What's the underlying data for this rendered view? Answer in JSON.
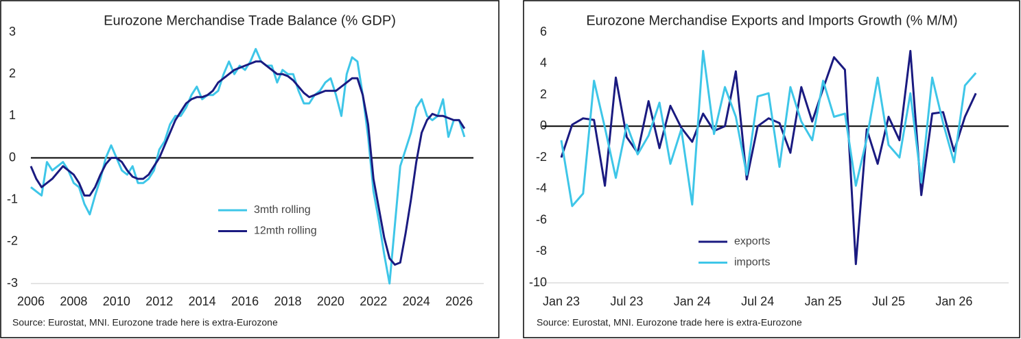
{
  "chart_data": [
    {
      "type": "line",
      "title": "Eurozone Merchandise Trade Balance (% GDP)",
      "source": "Source: Eurostat, MNI.  Eurozone trade here is extra-Eurozone",
      "x": [
        2006.0,
        2006.25,
        2006.5,
        2006.75,
        2007.0,
        2007.25,
        2007.5,
        2007.75,
        2008.0,
        2008.25,
        2008.5,
        2008.75,
        2009.0,
        2009.25,
        2009.5,
        2009.75,
        2010.0,
        2010.25,
        2010.5,
        2010.75,
        2011.0,
        2011.25,
        2011.5,
        2011.75,
        2012.0,
        2012.25,
        2012.5,
        2012.75,
        2013.0,
        2013.25,
        2013.5,
        2013.75,
        2014.0,
        2014.25,
        2014.5,
        2014.75,
        2015.0,
        2015.25,
        2015.5,
        2015.75,
        2016.0,
        2016.25,
        2016.5,
        2016.75,
        2017.0,
        2017.25,
        2017.5,
        2017.75,
        2018.0,
        2018.25,
        2018.5,
        2018.75,
        2019.0,
        2019.25,
        2019.5,
        2019.75,
        2020.0,
        2020.25,
        2020.5,
        2020.75,
        2021.0,
        2021.25,
        2021.5,
        2021.75,
        2022.0,
        2022.25,
        2022.5,
        2022.75,
        2023.0,
        2023.25,
        2023.5,
        2023.75,
        2024.0,
        2024.25,
        2024.5,
        2024.75,
        2025.0,
        2025.25,
        2025.5,
        2025.75,
        2026.0,
        2026.25
      ],
      "series": [
        {
          "name": "3mth rolling",
          "color": "#3ec6e8",
          "values": [
            -0.7,
            -0.8,
            -0.9,
            -0.1,
            -0.3,
            -0.2,
            -0.1,
            -0.3,
            -0.6,
            -0.7,
            -1.1,
            -1.35,
            -0.9,
            -0.5,
            0.0,
            0.3,
            0.0,
            -0.3,
            -0.4,
            -0.2,
            -0.6,
            -0.6,
            -0.5,
            -0.3,
            0.2,
            0.4,
            0.8,
            1.0,
            1.0,
            1.2,
            1.5,
            1.7,
            1.4,
            1.5,
            1.5,
            1.6,
            2.0,
            2.3,
            2.0,
            2.2,
            2.1,
            2.3,
            2.6,
            2.3,
            2.2,
            2.2,
            1.8,
            2.1,
            2.0,
            2.0,
            1.6,
            1.3,
            1.3,
            1.5,
            1.6,
            1.8,
            1.9,
            1.5,
            1.0,
            2.0,
            2.4,
            2.3,
            1.5,
            0.5,
            -0.8,
            -1.5,
            -2.3,
            -3.0,
            -1.6,
            -0.2,
            0.2,
            0.6,
            1.2,
            1.4,
            1.0,
            0.9,
            1.0,
            1.4,
            0.5,
            0.9,
            0.9,
            0.5
          ]
        },
        {
          "name": "12mth rolling",
          "color": "#1a1a80",
          "values": [
            -0.2,
            -0.5,
            -0.7,
            -0.6,
            -0.5,
            -0.35,
            -0.2,
            -0.3,
            -0.4,
            -0.6,
            -0.9,
            -0.9,
            -0.7,
            -0.4,
            -0.15,
            0.0,
            0.0,
            -0.1,
            -0.3,
            -0.45,
            -0.5,
            -0.5,
            -0.4,
            -0.2,
            0.0,
            0.3,
            0.6,
            0.9,
            1.1,
            1.3,
            1.4,
            1.45,
            1.45,
            1.5,
            1.6,
            1.8,
            1.9,
            2.0,
            2.1,
            2.15,
            2.2,
            2.25,
            2.3,
            2.3,
            2.2,
            2.1,
            2.0,
            2.0,
            1.95,
            1.85,
            1.7,
            1.55,
            1.45,
            1.5,
            1.55,
            1.6,
            1.6,
            1.6,
            1.7,
            1.8,
            1.9,
            1.9,
            1.5,
            0.8,
            -0.5,
            -1.2,
            -1.9,
            -2.4,
            -2.55,
            -2.5,
            -1.8,
            -1.0,
            -0.1,
            0.6,
            0.9,
            1.05,
            1.0,
            1.0,
            0.95,
            0.9,
            0.9,
            0.7
          ]
        }
      ],
      "xlim": [
        2006,
        2027.15
      ],
      "xticks": [
        2006,
        2008,
        2010,
        2012,
        2014,
        2016,
        2018,
        2020,
        2022,
        2024,
        2026
      ],
      "ylim": [
        -3,
        3
      ],
      "yticks": [
        -3,
        -2,
        -1,
        0,
        1,
        2,
        3
      ],
      "legend": "center",
      "zero_line": true
    },
    {
      "type": "line",
      "title": "Eurozone Merchandise Exports and Imports Growth (% M/M)",
      "source": "Source: Eurostat, MNI.  Eurozone trade here is extra-Eurozone",
      "categories": [
        "Jan 23",
        null,
        null,
        null,
        null,
        null,
        "Jul 23",
        null,
        null,
        null,
        null,
        null,
        "Jan 24",
        null,
        null,
        null,
        null,
        null,
        "Jul 24",
        null,
        null,
        null,
        null,
        null,
        "Jan 25",
        null,
        null,
        null,
        null,
        null,
        "Jul 25",
        null,
        null,
        null,
        null,
        null,
        "Jan 26",
        null,
        null
      ],
      "series": [
        {
          "name": "exports",
          "color": "#1a1a80",
          "values": [
            -2.0,
            0.1,
            0.5,
            0.4,
            -3.8,
            3.1,
            -0.7,
            -1.7,
            1.6,
            -1.4,
            1.3,
            -0.1,
            -1.0,
            0.8,
            -0.3,
            0.0,
            3.5,
            -3.4,
            0.0,
            0.5,
            0.2,
            -1.7,
            2.5,
            0.3,
            2.4,
            4.4,
            3.6,
            -8.8,
            -0.2,
            -2.4,
            0.6,
            -0.9,
            4.8,
            -4.4,
            0.8,
            0.9,
            -1.6,
            0.6,
            2.1
          ]
        },
        {
          "name": "imports",
          "color": "#3ec6e8",
          "values": [
            -0.9,
            -5.1,
            -4.3,
            2.9,
            -0.1,
            -3.3,
            0.1,
            -1.8,
            -0.6,
            1.5,
            -2.4,
            -0.2,
            -5.0,
            4.8,
            -0.5,
            2.5,
            0.6,
            -3.1,
            1.9,
            2.1,
            -2.6,
            2.5,
            0.3,
            -0.9,
            2.9,
            0.6,
            0.8,
            -3.8,
            -0.8,
            3.1,
            -1.2,
            -2.0,
            2.1,
            -3.6,
            3.1,
            0.2,
            -2.3,
            2.6,
            3.4
          ]
        }
      ],
      "ylim": [
        -10,
        6
      ],
      "yticks": [
        -10,
        -8,
        -6,
        -4,
        -2,
        0,
        2,
        4,
        6
      ],
      "legend": "lower-left",
      "zero_line": true
    }
  ]
}
